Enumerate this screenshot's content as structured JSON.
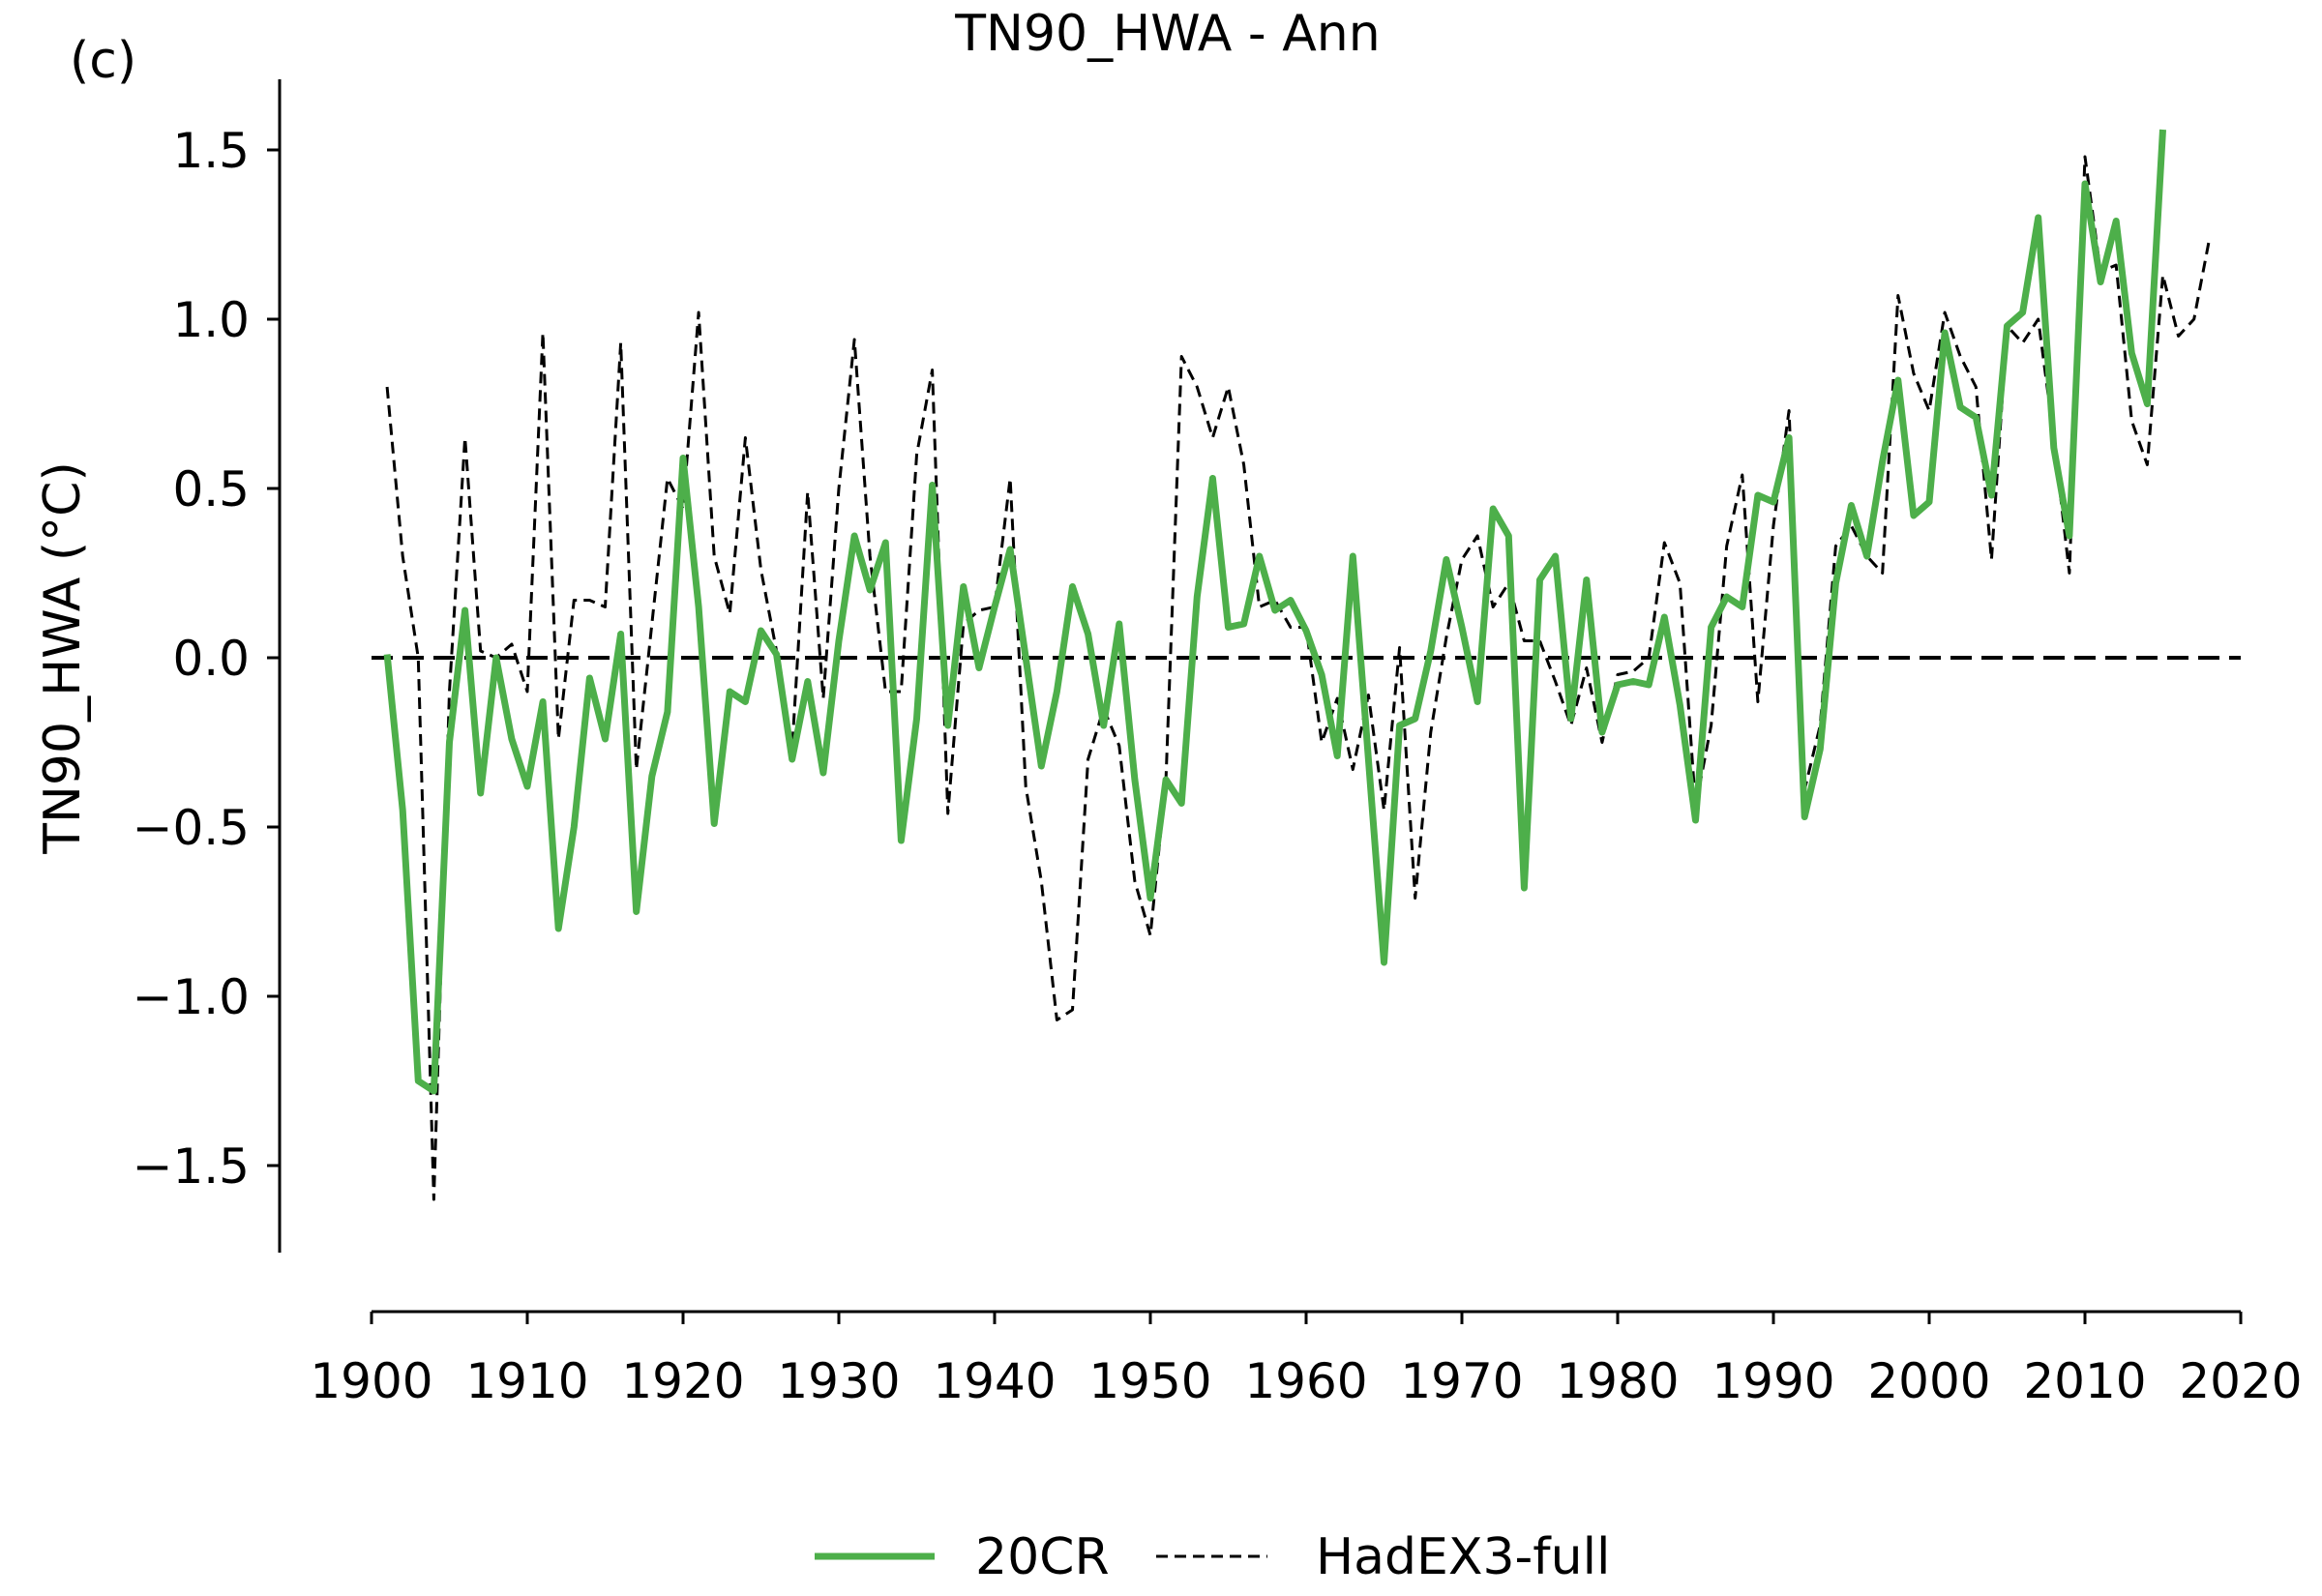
{
  "chart_data": {
    "type": "line",
    "panel_label": "(c)",
    "title": "TN90_HWA - Ann",
    "xlabel": "",
    "ylabel": "TN90_HWA (°C)",
    "xlim": [
      1900,
      2020
    ],
    "ylim": [
      -1.75,
      1.7
    ],
    "xticks": [
      1900,
      1910,
      1920,
      1930,
      1940,
      1950,
      1960,
      1970,
      1980,
      1990,
      2000,
      2010,
      2020
    ],
    "yticks": [
      -1.5,
      -1.0,
      -0.5,
      0.0,
      0.5,
      1.0,
      1.5
    ],
    "ytick_labels": [
      "−1.5",
      "−1.0",
      "−0.5",
      "0.0",
      "0.5",
      "1.0",
      "1.5"
    ],
    "reference_line": {
      "y": 0.0,
      "x_from": 1900,
      "x_to": 2020,
      "color": "#000000",
      "style": "dashed"
    },
    "legend": {
      "placement": "bottom-center"
    },
    "series": [
      {
        "name": "20CR",
        "color": "#4daf4a",
        "style": "solid",
        "x": [
          1901,
          1902,
          1903,
          1904,
          1905,
          1906,
          1907,
          1908,
          1909,
          1910,
          1911,
          1912,
          1913,
          1914,
          1915,
          1916,
          1917,
          1918,
          1919,
          1920,
          1921,
          1922,
          1923,
          1924,
          1925,
          1926,
          1927,
          1928,
          1929,
          1930,
          1931,
          1932,
          1933,
          1934,
          1935,
          1936,
          1937,
          1938,
          1939,
          1940,
          1941,
          1942,
          1943,
          1944,
          1945,
          1946,
          1947,
          1948,
          1949,
          1950,
          1951,
          1952,
          1953,
          1954,
          1955,
          1956,
          1957,
          1958,
          1959,
          1960,
          1961,
          1962,
          1963,
          1964,
          1965,
          1966,
          1967,
          1968,
          1969,
          1970,
          1971,
          1972,
          1973,
          1974,
          1975,
          1976,
          1977,
          1978,
          1979,
          1980,
          1981,
          1982,
          1983,
          1984,
          1985,
          1986,
          1987,
          1988,
          1989,
          1990,
          1991,
          1992,
          1993,
          1994,
          1995,
          1996,
          1997,
          1998,
          1999,
          2000,
          2001,
          2002,
          2003,
          2004,
          2005,
          2006,
          2007,
          2008,
          2009,
          2010,
          2011,
          2012,
          2013,
          2014,
          2015
        ],
        "values": [
          0.01,
          -0.45,
          -1.25,
          -1.28,
          -0.25,
          0.14,
          -0.4,
          0.0,
          -0.24,
          -0.38,
          -0.13,
          -0.8,
          -0.5,
          -0.06,
          -0.24,
          0.07,
          -0.75,
          -0.35,
          -0.16,
          0.59,
          0.15,
          -0.49,
          -0.1,
          -0.13,
          0.08,
          0.01,
          -0.3,
          -0.07,
          -0.34,
          0.05,
          0.36,
          0.2,
          0.34,
          -0.54,
          -0.18,
          0.51,
          -0.2,
          0.21,
          -0.03,
          0.15,
          0.32,
          0.0,
          -0.32,
          -0.1,
          0.21,
          0.07,
          -0.2,
          0.1,
          -0.36,
          -0.71,
          -0.36,
          -0.43,
          0.18,
          0.53,
          0.09,
          0.1,
          0.3,
          0.14,
          0.17,
          0.08,
          -0.05,
          -0.29,
          0.3,
          -0.3,
          -0.9,
          -0.2,
          -0.18,
          0.02,
          0.29,
          0.09,
          -0.13,
          0.44,
          0.36,
          -0.68,
          0.23,
          0.3,
          -0.18,
          0.23,
          -0.22,
          -0.08,
          -0.07,
          -0.08,
          0.12,
          -0.14,
          -0.48,
          0.09,
          0.18,
          0.15,
          0.48,
          0.46,
          0.65,
          -0.47,
          -0.27,
          0.22,
          0.45,
          0.3,
          0.58,
          0.82,
          0.42,
          0.46,
          0.96,
          0.74,
          0.71,
          0.48,
          0.98,
          1.02,
          1.3,
          0.62,
          0.36,
          1.4,
          1.11,
          1.29,
          0.9,
          0.75,
          1.56
        ]
      },
      {
        "name": "HadEX3-full",
        "color": "#000000",
        "style": "dashed",
        "x": [
          1901,
          1902,
          1903,
          1904,
          1905,
          1906,
          1907,
          1908,
          1909,
          1910,
          1911,
          1912,
          1913,
          1914,
          1915,
          1916,
          1917,
          1918,
          1919,
          1920,
          1921,
          1922,
          1923,
          1924,
          1925,
          1926,
          1927,
          1928,
          1929,
          1930,
          1931,
          1932,
          1933,
          1934,
          1935,
          1936,
          1937,
          1938,
          1939,
          1940,
          1941,
          1942,
          1943,
          1944,
          1945,
          1946,
          1947,
          1948,
          1949,
          1950,
          1951,
          1952,
          1953,
          1954,
          1955,
          1956,
          1957,
          1958,
          1959,
          1960,
          1961,
          1962,
          1963,
          1964,
          1965,
          1966,
          1967,
          1968,
          1969,
          1970,
          1971,
          1972,
          1973,
          1974,
          1975,
          1976,
          1977,
          1978,
          1979,
          1980,
          1981,
          1982,
          1983,
          1984,
          1985,
          1986,
          1987,
          1988,
          1989,
          1990,
          1991,
          1992,
          1993,
          1994,
          1995,
          1996,
          1997,
          1998,
          1999,
          2000,
          2001,
          2002,
          2003,
          2004,
          2005,
          2006,
          2007,
          2008,
          2009,
          2010,
          2011,
          2012,
          2013,
          2014,
          2015,
          2016,
          2017,
          2018
        ],
        "values": [
          0.8,
          0.3,
          0.0,
          -1.6,
          -0.1,
          0.65,
          0.02,
          0.0,
          0.04,
          -0.1,
          0.96,
          -0.24,
          0.17,
          0.17,
          0.15,
          0.93,
          -0.33,
          0.1,
          0.53,
          0.44,
          1.02,
          0.3,
          0.13,
          0.65,
          0.26,
          0.02,
          -0.27,
          0.49,
          -0.12,
          0.5,
          0.94,
          0.3,
          -0.1,
          -0.1,
          0.6,
          0.85,
          -0.46,
          0.1,
          0.14,
          0.15,
          0.53,
          -0.38,
          -0.66,
          -1.07,
          -1.04,
          -0.3,
          -0.15,
          -0.26,
          -0.66,
          -0.82,
          -0.36,
          0.89,
          0.8,
          0.65,
          0.8,
          0.57,
          0.15,
          0.17,
          0.09,
          0.09,
          -0.25,
          -0.12,
          -0.33,
          -0.11,
          -0.45,
          0.03,
          -0.71,
          -0.22,
          0.06,
          0.29,
          0.36,
          0.15,
          0.22,
          0.05,
          0.05,
          -0.07,
          -0.2,
          -0.03,
          -0.25,
          -0.05,
          -0.04,
          0.0,
          0.34,
          0.22,
          -0.44,
          -0.2,
          0.33,
          0.54,
          -0.13,
          0.39,
          0.73,
          -0.39,
          -0.2,
          0.33,
          0.39,
          0.3,
          0.25,
          1.07,
          0.84,
          0.73,
          1.02,
          0.89,
          0.8,
          0.29,
          0.98,
          0.93,
          1.0,
          0.65,
          0.25,
          1.48,
          1.14,
          1.16,
          0.7,
          0.57,
          1.13,
          0.95,
          1.0,
          1.24
        ]
      }
    ]
  }
}
